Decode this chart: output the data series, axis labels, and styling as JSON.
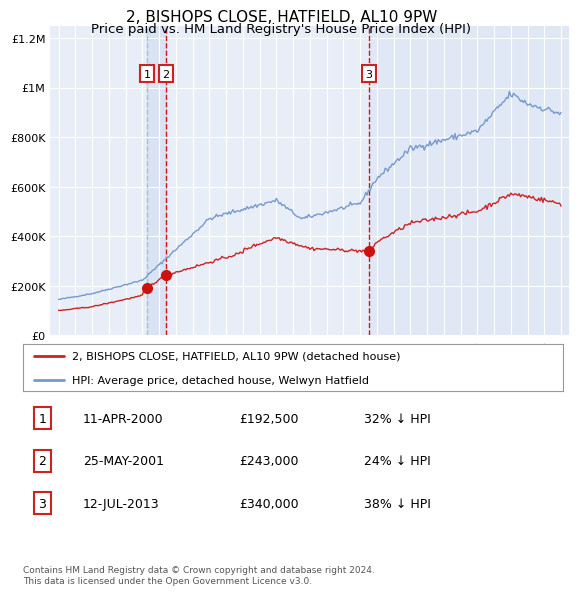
{
  "title": "2, BISHOPS CLOSE, HATFIELD, AL10 9PW",
  "subtitle": "Price paid vs. HM Land Registry's House Price Index (HPI)",
  "title_fontsize": 11,
  "subtitle_fontsize": 9.5,
  "background_color": "#e8eef7",
  "grid_color": "#ffffff",
  "hpi_line_color": "#7799cc",
  "price_line_color": "#cc2222",
  "purchase_marker_color": "#cc1111",
  "purchase_dates": [
    2000.28,
    2001.4,
    2013.54
  ],
  "purchase_prices": [
    192500,
    243000,
    340000
  ],
  "purchase_labels": [
    "1",
    "2",
    "3"
  ],
  "legend_label_price": "2, BISHOPS CLOSE, HATFIELD, AL10 9PW (detached house)",
  "legend_label_hpi": "HPI: Average price, detached house, Welwyn Hatfield",
  "table_data": [
    [
      "1",
      "11-APR-2000",
      "£192,500",
      "32% ↓ HPI"
    ],
    [
      "2",
      "25-MAY-2001",
      "£243,000",
      "24% ↓ HPI"
    ],
    [
      "3",
      "12-JUL-2013",
      "£340,000",
      "38% ↓ HPI"
    ]
  ],
  "footer": "Contains HM Land Registry data © Crown copyright and database right 2024.\nThis data is licensed under the Open Government Licence v3.0.",
  "ylim": [
    0,
    1250000
  ],
  "yticks": [
    0,
    200000,
    400000,
    600000,
    800000,
    1000000,
    1200000
  ],
  "ytick_labels": [
    "£0",
    "£200K",
    "£400K",
    "£600K",
    "£800K",
    "£1M",
    "£1.2M"
  ],
  "xmin": 1994.5,
  "xmax": 2025.5,
  "xticks": [
    1995,
    1996,
    1997,
    1998,
    1999,
    2000,
    2001,
    2002,
    2003,
    2004,
    2005,
    2006,
    2007,
    2008,
    2009,
    2010,
    2011,
    2012,
    2013,
    2014,
    2015,
    2016,
    2017,
    2018,
    2019,
    2020,
    2021,
    2022,
    2023,
    2024,
    2025
  ]
}
